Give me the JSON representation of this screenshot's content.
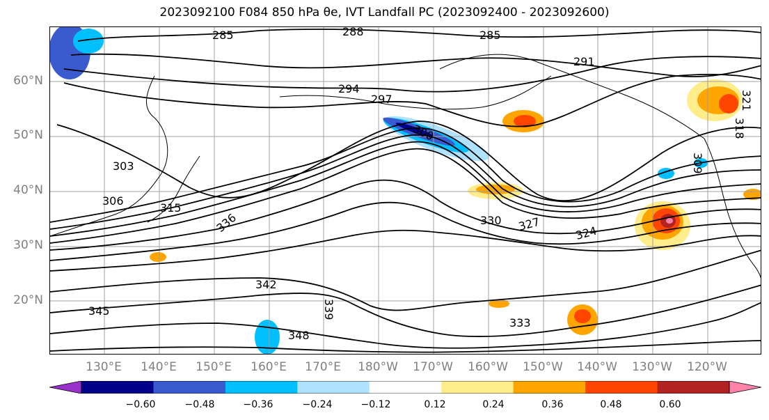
{
  "title": "2023092100 F084 850 hPa θe, IVT Landfall PC (2023092400 - 2023092600)",
  "map": {
    "lat_labels": [
      "60°N",
      "50°N",
      "40°N",
      "30°N",
      "20°N"
    ],
    "lon_labels": [
      "130°E",
      "140°E",
      "150°E",
      "160°E",
      "170°E",
      "180°W",
      "170°W",
      "160°W",
      "150°W",
      "140°W",
      "130°W",
      "120°W"
    ],
    "contour_labels": [
      "285",
      "288",
      "285",
      "291",
      "294",
      "297",
      "300",
      "303",
      "306",
      "309",
      "315",
      "318",
      "321",
      "324",
      "327",
      "330",
      "333",
      "336",
      "339",
      "342",
      "345",
      "348"
    ],
    "grid_color": "#a0a0a0",
    "contour_color": "#000000"
  },
  "colorbar": {
    "colors": [
      "#9932cc",
      "#00008b",
      "#3a5bd0",
      "#00bfff",
      "#b0e2ff",
      "#ffffff",
      "#ffec8b",
      "#ffa500",
      "#ff4500",
      "#b22222",
      "#ff82ab"
    ],
    "ticks": [
      "−0.60",
      "−0.48",
      "−0.36",
      "−0.24",
      "−0.12",
      "0.12",
      "0.24",
      "0.36",
      "0.48",
      "0.60"
    ]
  }
}
